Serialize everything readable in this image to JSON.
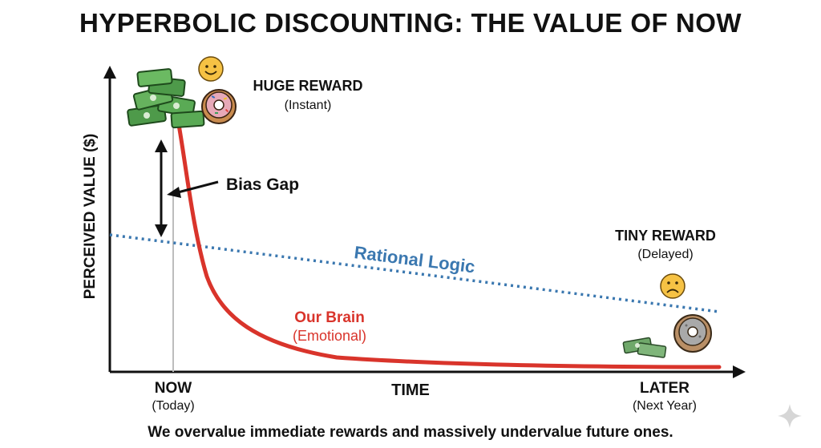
{
  "title": "HYPERBOLIC DISCOUNTING: THE VALUE OF NOW",
  "subtitle": "We overvalue immediate rewards and massively undervalue future ones.",
  "axes": {
    "y_label": "PERCEIVED VALUE ($)",
    "x_label": "TIME",
    "x_start": "NOW",
    "x_start_sub": "(Today)",
    "x_end": "LATER",
    "x_end_sub": "(Next Year)"
  },
  "annotations": {
    "huge_reward": "HUGE REWARD",
    "huge_reward_sub": "(Instant)",
    "tiny_reward": "TINY REWARD",
    "tiny_reward_sub": "(Delayed)",
    "bias_gap": "Bias Gap",
    "rational": "Rational Logic",
    "brain": "Our Brain",
    "brain_sub": "(Emotional)"
  },
  "colors": {
    "brain_curve": "#d9342b",
    "rational_line": "#3b78b0",
    "text": "#111111"
  },
  "icons": {
    "now_reward": [
      "money-stack-icon",
      "donut-icon",
      "happy-face-icon"
    ],
    "later_reward": [
      "small-money-icon",
      "stale-donut-icon",
      "sad-face-icon"
    ],
    "corner": "sparkle-icon"
  }
}
